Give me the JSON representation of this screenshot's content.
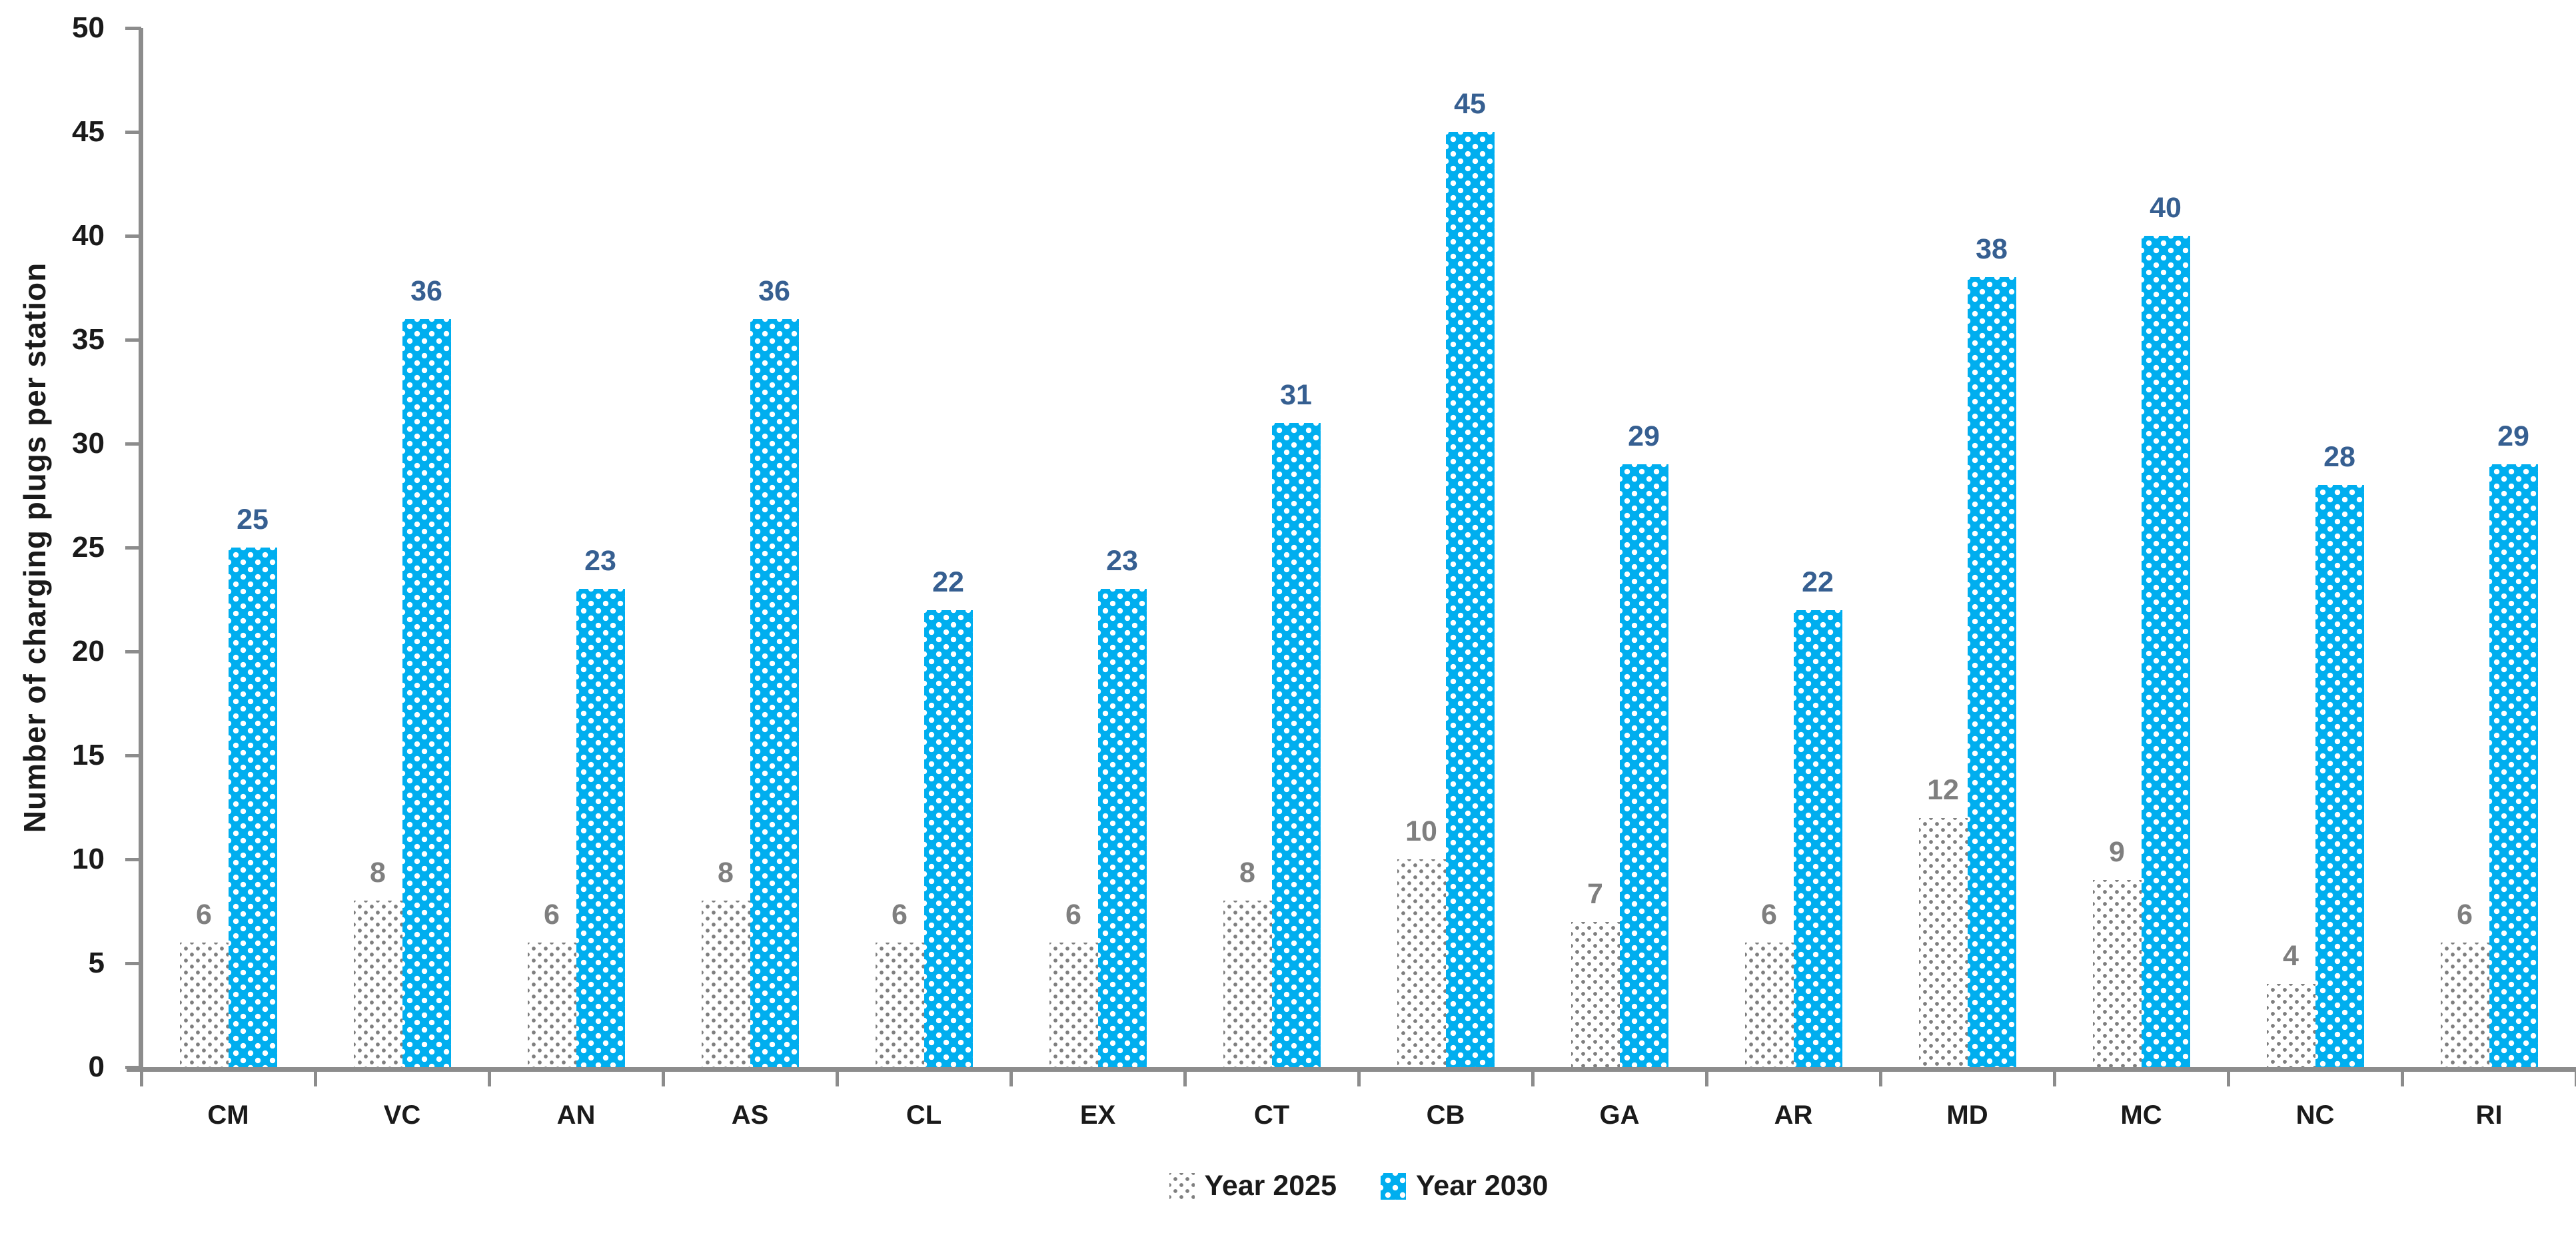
{
  "chart_data": {
    "type": "bar",
    "categories": [
      "CM",
      "VC",
      "AN",
      "AS",
      "CL",
      "EX",
      "CT",
      "CB",
      "GA",
      "AR",
      "MD",
      "MC",
      "NC",
      "RI"
    ],
    "series": [
      {
        "name": "Year 2025",
        "values": [
          6,
          8,
          6,
          8,
          6,
          6,
          8,
          10,
          7,
          6,
          12,
          9,
          4,
          6
        ],
        "pattern": "gray-dotted",
        "fill_color": "#ffffff",
        "dot_color": "#7f7f7f",
        "label_color": "#7f7f7f"
      },
      {
        "name": "Year 2030",
        "values": [
          25,
          36,
          23,
          36,
          22,
          23,
          31,
          45,
          29,
          22,
          38,
          40,
          28,
          29
        ],
        "pattern": "blue-dotted",
        "fill_color": "#00AEEF",
        "dot_color": "#ffffff",
        "label_color": "#365F91"
      }
    ],
    "title": "",
    "xlabel": "",
    "ylabel": "Number of charging plugs per station",
    "ylim": [
      0,
      50
    ],
    "ytick_step": 5,
    "ytick_labels": [
      "0",
      "5",
      "10",
      "15",
      "20",
      "25",
      "30",
      "35",
      "40",
      "45",
      "50"
    ],
    "grid": false,
    "legend_position": "bottom",
    "axis_color": "#8c8c8c",
    "tick_text_color": "#1a1a1a",
    "data_labels_shown": true
  }
}
